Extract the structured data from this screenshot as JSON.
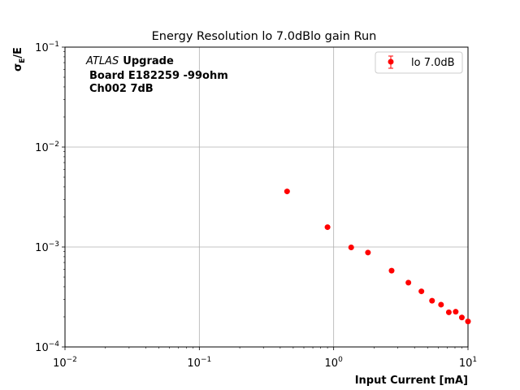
{
  "chart_data": {
    "type": "scatter",
    "title": "Energy Resolution lo 7.0dBlo gain Run",
    "xlabel": "Input Current [mA]",
    "ylabel": "σ_E/E",
    "xscale": "log",
    "yscale": "log",
    "xlim": [
      0.01,
      10
    ],
    "ylim": [
      0.0001,
      0.1
    ],
    "x_ticks": [
      {
        "value": 0.01,
        "base": "10",
        "exp": "−2"
      },
      {
        "value": 0.1,
        "base": "10",
        "exp": "−1"
      },
      {
        "value": 1,
        "base": "10",
        "exp": "0"
      },
      {
        "value": 10,
        "base": "10",
        "exp": "1"
      }
    ],
    "y_ticks": [
      {
        "value": 0.0001,
        "base": "10",
        "exp": "−4"
      },
      {
        "value": 0.001,
        "base": "10",
        "exp": "−3"
      },
      {
        "value": 0.01,
        "base": "10",
        "exp": "−2"
      },
      {
        "value": 0.1,
        "base": "10",
        "exp": "−1"
      }
    ],
    "grid": true,
    "legend_position": "top-right",
    "annotation": {
      "atlas": "ATLAS",
      "upgrade": "Upgrade",
      "line2": "Board E182259 -99ohm",
      "line3": "Ch002 7dB"
    },
    "series": [
      {
        "name": "lo 7.0dB",
        "color": "#ff0000",
        "x": [
          0.45,
          0.9,
          1.35,
          1.8,
          2.7,
          3.6,
          4.5,
          5.4,
          6.3,
          7.2,
          8.1,
          9.0,
          10.0
        ],
        "y": [
          0.0036,
          0.00158,
          0.00099,
          0.00088,
          0.00058,
          0.00044,
          0.00036,
          0.00029,
          0.000265,
          0.000222,
          0.000225,
          0.000197,
          0.00018
        ]
      }
    ]
  }
}
